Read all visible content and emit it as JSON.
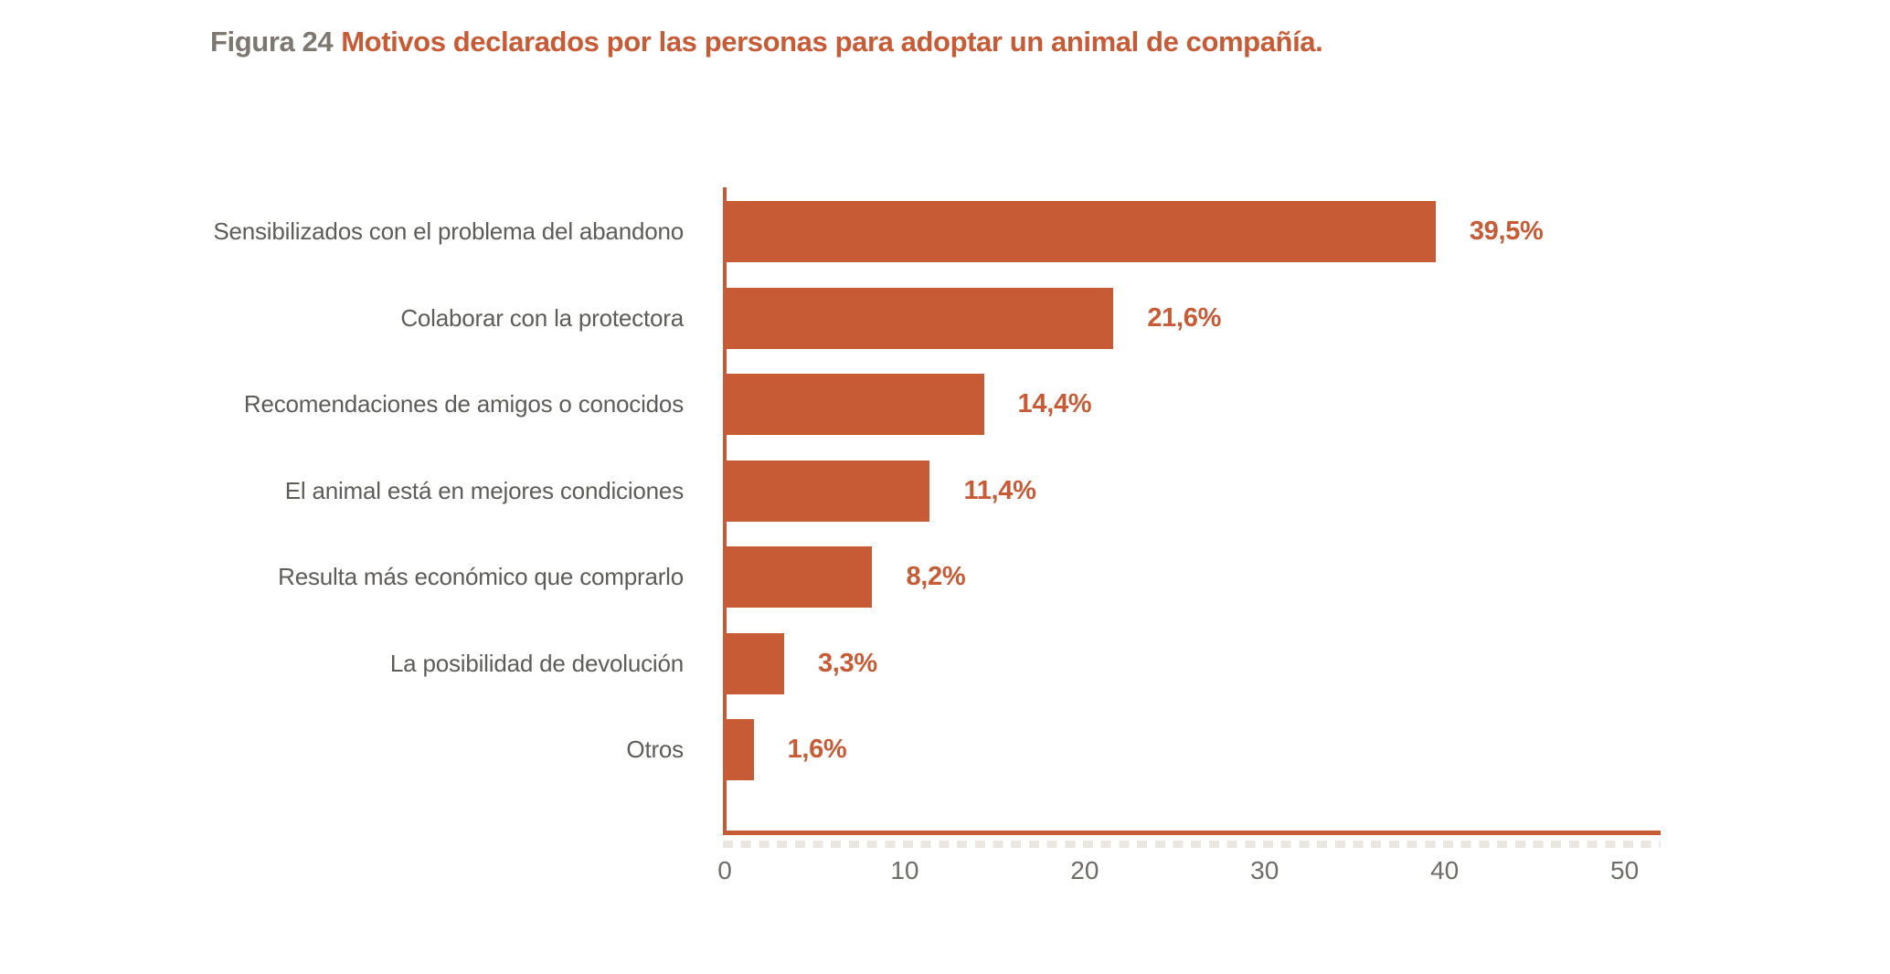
{
  "figure": {
    "label": "Figura 24",
    "title": "Motivos declarados por las personas para adoptar un animal de compañía."
  },
  "chart_data": {
    "type": "bar",
    "orientation": "horizontal",
    "title": "Motivos declarados por las personas para adoptar un animal de compañía.",
    "categories": [
      "Sensibilizados con el problema del abandono",
      "Colaborar con la protectora",
      "Recomendaciones de amigos o conocidos",
      "El animal está en mejores condiciones",
      "Resulta más económico que comprarlo",
      "La posibilidad de devolución",
      "Otros"
    ],
    "values": [
      39.5,
      21.6,
      14.4,
      11.4,
      8.2,
      3.3,
      1.6
    ],
    "value_labels": [
      "39,5%",
      "21,6%",
      "14,4%",
      "11,4%",
      "8,2%",
      "3,3%",
      "1,6%"
    ],
    "x_ticks": [
      0,
      10,
      20,
      30,
      40,
      50
    ],
    "xlim": [
      0,
      51.9
    ],
    "xlabel": "",
    "ylabel": "",
    "legend_position": "none",
    "grid": false,
    "colors": {
      "bar": "#c75b36",
      "value_label": "#c75b36",
      "axis": "#c75b36",
      "category_label": "#5e5c59",
      "tick_label": "#6f6c68",
      "figure_label": "#7d7772"
    }
  }
}
